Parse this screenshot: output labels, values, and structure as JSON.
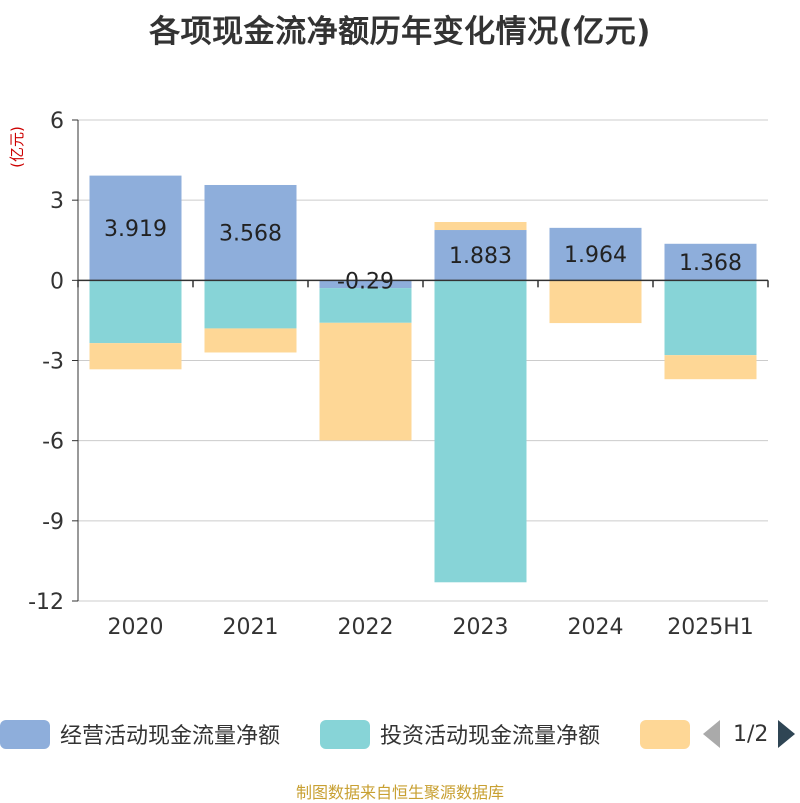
{
  "title": "各项现金流净额历年变化情况(亿元)",
  "source_note": "制图数据来自恒生聚源数据库",
  "legend_pager": {
    "text": "1/2"
  },
  "colors": {
    "operating": "#8eaedb",
    "investing": "#87d4d7",
    "financing": "#fed796",
    "axis": "#333333",
    "grid": "#cccccc",
    "unit_label": "#cc0000"
  },
  "chart_data": {
    "type": "bar",
    "stacked": true,
    "categories": [
      "2020",
      "2021",
      "2022",
      "2023",
      "2024",
      "2025H1"
    ],
    "ylabel": "(亿元)",
    "ylim": [
      -12,
      6
    ],
    "yticks": [
      6,
      3,
      0,
      -3,
      -6,
      -9,
      -12
    ],
    "grid": true,
    "legend_position": "bottom",
    "series": [
      {
        "name": "经营活动现金流量净额",
        "values": [
          3.919,
          3.568,
          -0.29,
          1.883,
          1.964,
          1.368
        ],
        "show_labels": true
      },
      {
        "name": "投资活动现金流量净额",
        "values": [
          -2.35,
          -1.8,
          -1.3,
          -11.3,
          0,
          -2.8
        ],
        "show_labels": false
      },
      {
        "name": "",
        "values": [
          -0.98,
          -0.9,
          -4.4,
          0.3,
          -1.6,
          -0.9
        ],
        "show_labels": false
      }
    ]
  }
}
